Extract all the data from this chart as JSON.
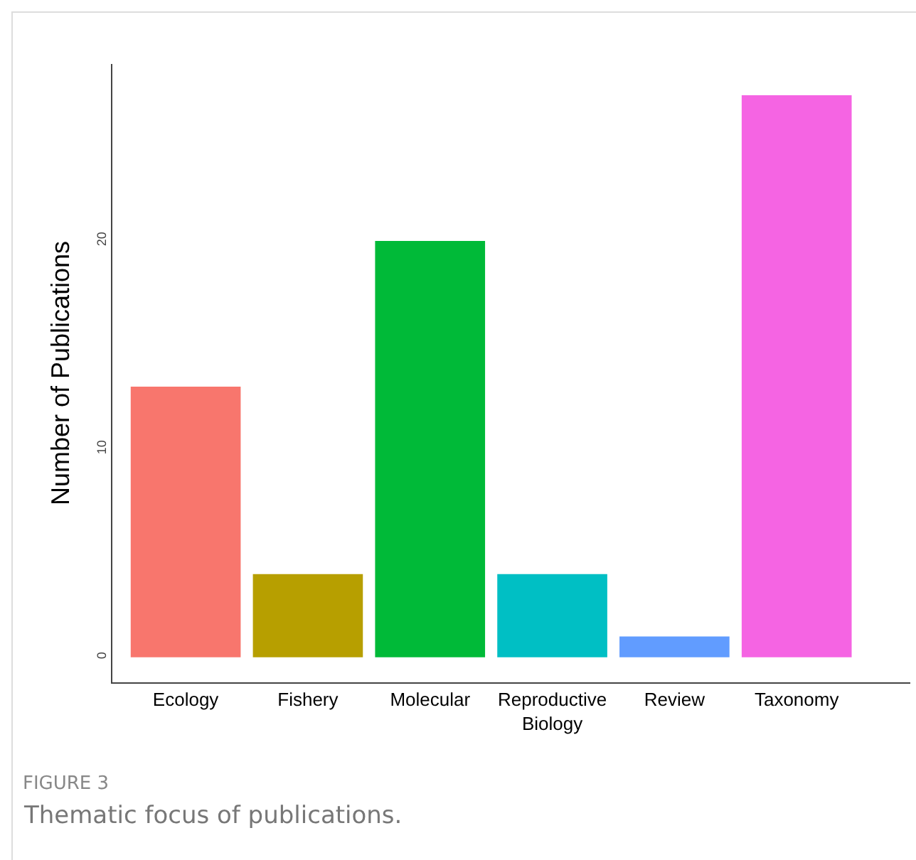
{
  "chart_data": {
    "type": "bar",
    "ylabel": "Number of Publications",
    "categories": [
      "Ecology",
      "Fishery",
      "Molecular",
      "Reproductive Biology",
      "Review",
      "Taxonomy"
    ],
    "values": [
      13,
      4,
      20,
      4,
      1,
      27
    ],
    "colors": [
      "#f8766d",
      "#b79f00",
      "#00ba38",
      "#00bfc4",
      "#619cff",
      "#f564e3"
    ],
    "ylim": [
      -1.2,
      28.5
    ],
    "yticks": [
      0,
      10,
      20
    ],
    "grid": false,
    "annotations": [
      "FIGURE 3",
      "Thematic focus of publications."
    ]
  }
}
